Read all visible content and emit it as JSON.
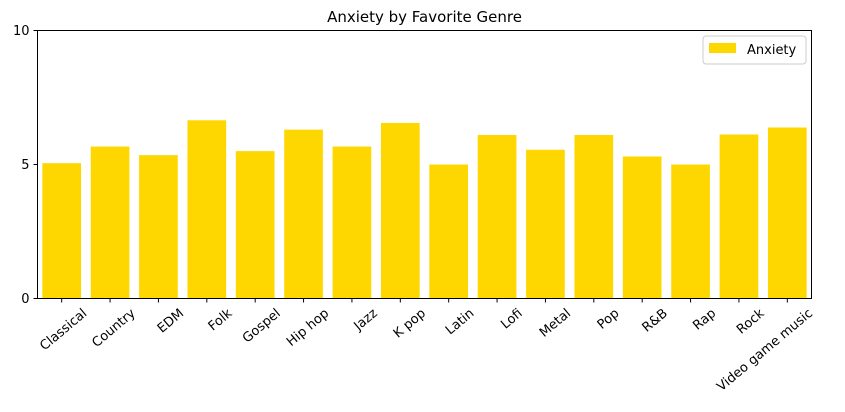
{
  "chart_data": {
    "type": "bar",
    "title": "Anxiety by Favorite Genre",
    "xlabel": "",
    "ylabel": "",
    "categories": [
      "Classical",
      "Country",
      "EDM",
      "Folk",
      "Gospel",
      "Hip hop",
      "Jazz",
      "K pop",
      "Latin",
      "Lofi",
      "Metal",
      "Pop",
      "R&B",
      "Rap",
      "Rock",
      "Video game music"
    ],
    "series": [
      {
        "name": "Anxiety",
        "color": "#FFD700",
        "values": [
          5.05,
          5.67,
          5.35,
          6.65,
          5.5,
          6.3,
          5.67,
          6.55,
          5.0,
          6.1,
          5.55,
          6.1,
          5.3,
          5.0,
          6.12,
          6.38
        ]
      }
    ],
    "ylim": [
      0,
      10
    ],
    "yticks": [
      0,
      5,
      10
    ],
    "grid": false,
    "legend": "top-right"
  }
}
